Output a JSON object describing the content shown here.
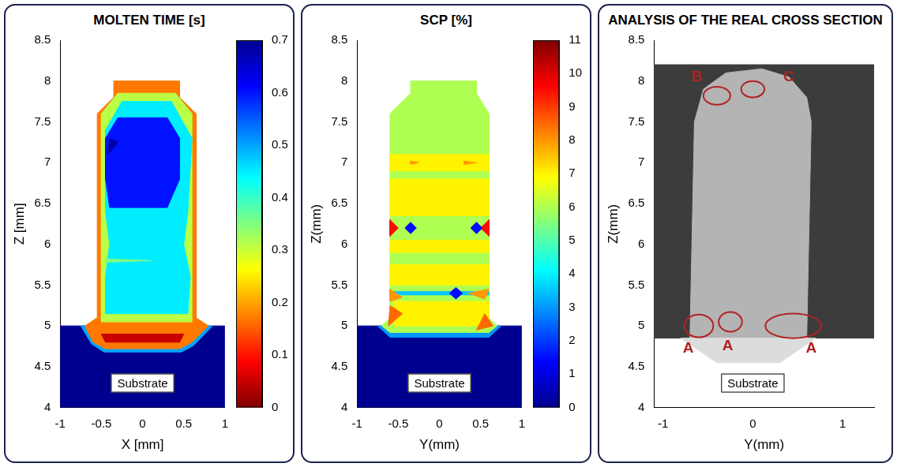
{
  "chart_data": [
    {
      "type": "contour",
      "title": "MOLTEN TIME [s]",
      "x_label": "X [mm]",
      "y_label": "Z [mm]",
      "xlim": [
        -1,
        1
      ],
      "xticks": [
        -1,
        -0.5,
        0,
        0.5,
        1
      ],
      "ylim": [
        4,
        8.5
      ],
      "yticks": [
        4,
        4.5,
        5,
        5.5,
        6,
        6.5,
        7,
        7.5,
        8,
        8.5
      ],
      "grid": false,
      "colorbar": {
        "range": [
          0,
          0.7
        ],
        "ticks": [
          0,
          0.1,
          0.2,
          0.3,
          0.4,
          0.5,
          0.6,
          0.7
        ],
        "colors": [
          "#800000",
          "#ff0000",
          "#ff8000",
          "#ffff00",
          "#80ff80",
          "#00ffff",
          "#0080ff",
          "#0000ff",
          "#00008f"
        ]
      },
      "regions": [
        {
          "value": 0.7,
          "points": [
            [
              -1,
              4
            ],
            [
              1,
              4
            ],
            [
              1,
              5
            ],
            [
              -1,
              5
            ]
          ]
        },
        {
          "value": 0.5,
          "points": [
            [
              -0.75,
              5.0
            ],
            [
              -0.62,
              4.78
            ],
            [
              -0.47,
              4.68
            ],
            [
              0.47,
              4.68
            ],
            [
              0.62,
              4.76
            ],
            [
              0.85,
              5.0
            ]
          ]
        },
        {
          "value": 0.17,
          "points": [
            [
              -0.7,
              5.0
            ],
            [
              -0.55,
              5.1
            ],
            [
              -0.55,
              7.6
            ],
            [
              -0.35,
              7.8
            ],
            [
              -0.35,
              8.0
            ],
            [
              0.45,
              8.0
            ],
            [
              0.45,
              7.8
            ],
            [
              0.65,
              7.6
            ],
            [
              0.65,
              5.1
            ],
            [
              0.8,
              5.0
            ],
            [
              0.6,
              4.8
            ],
            [
              0.45,
              4.72
            ],
            [
              -0.45,
              4.72
            ],
            [
              -0.6,
              4.8
            ]
          ]
        },
        {
          "value": 0.05,
          "points": [
            [
              -0.45,
              4.8
            ],
            [
              0.45,
              4.8
            ],
            [
              0.5,
              4.9
            ],
            [
              -0.5,
              4.9
            ]
          ]
        },
        {
          "value": 0.31,
          "points": [
            [
              -0.5,
              5.05
            ],
            [
              0.6,
              5.05
            ],
            [
              0.6,
              7.6
            ],
            [
              0.4,
              7.85
            ],
            [
              -0.3,
              7.85
            ],
            [
              -0.5,
              7.6
            ]
          ]
        },
        {
          "value": 0.45,
          "points": [
            [
              -0.45,
              5.15
            ],
            [
              0.55,
              5.15
            ],
            [
              0.58,
              5.6
            ],
            [
              0.5,
              6.0
            ],
            [
              0.55,
              6.4
            ],
            [
              0.6,
              7.3
            ],
            [
              0.35,
              7.75
            ],
            [
              -0.25,
              7.75
            ],
            [
              -0.45,
              7.4
            ],
            [
              -0.45,
              6.4
            ],
            [
              -0.4,
              6.0
            ],
            [
              -0.45,
              5.6
            ]
          ]
        },
        {
          "value": 0.35,
          "points": [
            [
              -0.45,
              5.78
            ],
            [
              0.1,
              5.8
            ],
            [
              -0.45,
              5.82
            ]
          ]
        },
        {
          "value": 0.6,
          "points": [
            [
              -0.4,
              6.45
            ],
            [
              0.3,
              6.45
            ],
            [
              0.45,
              6.8
            ],
            [
              0.45,
              7.3
            ],
            [
              0.3,
              7.55
            ],
            [
              -0.3,
              7.55
            ],
            [
              -0.45,
              7.3
            ],
            [
              -0.45,
              6.8
            ]
          ]
        },
        {
          "value": 0.68,
          "points": [
            [
              -0.42,
              7.1
            ],
            [
              -0.3,
              7.25
            ],
            [
              -0.4,
              7.3
            ]
          ]
        }
      ],
      "annotations": [
        {
          "text": "Substrate",
          "x": 0,
          "y": 4.3
        }
      ]
    },
    {
      "type": "contour",
      "title": "SCP [%]",
      "x_label": "Y(mm)",
      "y_label": "Z(mm)",
      "xlim": [
        -1,
        1
      ],
      "xticks": [
        -1,
        -0.5,
        0,
        0.5,
        1
      ],
      "ylim": [
        4,
        8.5
      ],
      "yticks": [
        4,
        4.5,
        5,
        5.5,
        6,
        6.5,
        7,
        7.5,
        8,
        8.5
      ],
      "grid": false,
      "colorbar": {
        "range": [
          0,
          11
        ],
        "ticks": [
          0,
          1,
          2,
          3,
          4,
          5,
          6,
          7,
          8,
          9,
          10,
          11
        ],
        "colors": [
          "#00008f",
          "#0000ff",
          "#0080ff",
          "#00ffff",
          "#80ff80",
          "#ffff00",
          "#ff8000",
          "#ff0000",
          "#800000"
        ]
      },
      "regions": [
        {
          "value": 0,
          "points": [
            [
              -1,
              4
            ],
            [
              1,
              4
            ],
            [
              1,
              5
            ],
            [
              -1,
              5
            ]
          ]
        },
        {
          "value": 3,
          "points": [
            [
              -0.75,
              5.0
            ],
            [
              -0.6,
              4.86
            ],
            [
              0.6,
              4.86
            ],
            [
              0.75,
              5.0
            ]
          ]
        },
        {
          "value": 6,
          "points": [
            [
              -0.7,
              5.0
            ],
            [
              -0.6,
              5.1
            ],
            [
              -0.6,
              7.6
            ],
            [
              -0.35,
              7.85
            ],
            [
              -0.35,
              8.0
            ],
            [
              0.45,
              8.0
            ],
            [
              0.45,
              7.85
            ],
            [
              0.6,
              7.6
            ],
            [
              0.6,
              5.1
            ],
            [
              0.7,
              5.0
            ],
            [
              0.6,
              4.92
            ],
            [
              -0.6,
              4.92
            ]
          ]
        },
        {
          "value": 7,
          "points": [
            [
              -0.55,
              5.0
            ],
            [
              0.6,
              5.0
            ],
            [
              0.6,
              5.3
            ],
            [
              -0.55,
              5.3
            ]
          ]
        },
        {
          "value": 7,
          "points": [
            [
              -0.6,
              5.5
            ],
            [
              0.6,
              5.5
            ],
            [
              0.6,
              5.75
            ],
            [
              -0.6,
              5.75
            ]
          ]
        },
        {
          "value": 7,
          "points": [
            [
              -0.6,
              5.9
            ],
            [
              0.6,
              5.9
            ],
            [
              0.6,
              6.05
            ],
            [
              -0.6,
              6.05
            ]
          ]
        },
        {
          "value": 7,
          "points": [
            [
              -0.6,
              6.35
            ],
            [
              0.6,
              6.35
            ],
            [
              0.6,
              6.8
            ],
            [
              -0.6,
              6.8
            ]
          ]
        },
        {
          "value": 7,
          "points": [
            [
              -0.6,
              6.9
            ],
            [
              0.6,
              6.9
            ],
            [
              0.6,
              7.1
            ],
            [
              -0.6,
              7.1
            ]
          ]
        },
        {
          "value": 8,
          "points": [
            [
              -0.35,
              6.98
            ],
            [
              -0.25,
              7.0
            ],
            [
              -0.35,
              7.02
            ]
          ]
        },
        {
          "value": 8,
          "points": [
            [
              0.3,
              6.98
            ],
            [
              0.45,
              7.0
            ],
            [
              0.3,
              7.02
            ]
          ]
        },
        {
          "value": 9.5,
          "points": [
            [
              -0.6,
              6.1
            ],
            [
              -0.5,
              6.2
            ],
            [
              -0.6,
              6.3
            ]
          ]
        },
        {
          "value": 9.5,
          "points": [
            [
              0.6,
              6.1
            ],
            [
              0.5,
              6.2
            ],
            [
              0.6,
              6.3
            ]
          ]
        },
        {
          "value": 3.5,
          "points": [
            [
              -0.6,
              5.38
            ],
            [
              0.6,
              5.38
            ],
            [
              0.6,
              5.42
            ],
            [
              -0.6,
              5.42
            ]
          ]
        },
        {
          "value": 1.5,
          "points": [
            [
              -0.42,
              6.2
            ],
            [
              -0.35,
              6.27
            ],
            [
              -0.28,
              6.2
            ],
            [
              -0.35,
              6.13
            ]
          ]
        },
        {
          "value": 1.5,
          "points": [
            [
              0.38,
              6.2
            ],
            [
              0.45,
              6.27
            ],
            [
              0.52,
              6.2
            ],
            [
              0.45,
              6.13
            ]
          ]
        },
        {
          "value": 1.5,
          "points": [
            [
              0.12,
              5.4
            ],
            [
              0.2,
              5.47
            ],
            [
              0.28,
              5.4
            ],
            [
              0.2,
              5.33
            ]
          ]
        },
        {
          "value": 8,
          "points": [
            [
              0.35,
              5.4
            ],
            [
              0.55,
              5.33
            ],
            [
              0.6,
              5.45
            ]
          ]
        },
        {
          "value": 8.5,
          "points": [
            [
              -0.62,
              5.0
            ],
            [
              -0.45,
              5.15
            ],
            [
              -0.6,
              5.25
            ]
          ]
        },
        {
          "value": 8.5,
          "points": [
            [
              0.45,
              4.95
            ],
            [
              0.65,
              5.0
            ],
            [
              0.55,
              5.15
            ]
          ]
        },
        {
          "value": 8,
          "points": [
            [
              -0.6,
              5.3
            ],
            [
              -0.45,
              5.35
            ],
            [
              -0.6,
              5.45
            ]
          ]
        }
      ],
      "annotations": [
        {
          "text": "Substrate",
          "x": 0,
          "y": 4.3
        }
      ]
    },
    {
      "type": "image",
      "title": "ANALYSIS OF THE REAL CROSS SECTION",
      "x_label": "Y(mm)",
      "y_label": "Z(mm)",
      "xlim": [
        -1.1,
        1.35
      ],
      "xticks": [
        -1,
        0,
        1
      ],
      "ylim": [
        4,
        8.5
      ],
      "yticks": [
        4,
        4.5,
        5,
        5.5,
        6,
        6.5,
        7,
        7.5,
        8,
        8.5
      ],
      "grid": false,
      "regions": [
        {
          "color": "#3c3c3c",
          "points": [
            [
              -1.1,
              4.85
            ],
            [
              1.35,
              4.85
            ],
            [
              1.35,
              8.2
            ],
            [
              -1.1,
              8.2
            ]
          ]
        },
        {
          "color": "#b4b4b4",
          "points": [
            [
              -0.7,
              4.85
            ],
            [
              -0.65,
              7.5
            ],
            [
              -0.55,
              7.9
            ],
            [
              -0.3,
              8.1
            ],
            [
              0.1,
              8.15
            ],
            [
              0.4,
              8.05
            ],
            [
              0.6,
              7.8
            ],
            [
              0.65,
              7.5
            ],
            [
              0.6,
              4.85
            ]
          ]
        },
        {
          "color": "#dcdcdc",
          "points": [
            [
              -0.8,
              4.85
            ],
            [
              -0.4,
              4.55
            ],
            [
              0.3,
              4.55
            ],
            [
              0.7,
              4.85
            ]
          ]
        }
      ],
      "circles": [
        {
          "x": -0.4,
          "y": 7.82,
          "width": 0.3,
          "height": 0.22,
          "color": "#b22222"
        },
        {
          "x": 0,
          "y": 7.9,
          "width": 0.26,
          "height": 0.2,
          "color": "#b22222"
        },
        {
          "x": -0.6,
          "y": 5.0,
          "width": 0.32,
          "height": 0.28,
          "color": "#b22222"
        },
        {
          "x": -0.25,
          "y": 5.05,
          "width": 0.26,
          "height": 0.24,
          "color": "#b22222"
        },
        {
          "x": 0.45,
          "y": 5.0,
          "width": 0.62,
          "height": 0.3,
          "color": "#b22222"
        }
      ],
      "annotations": [
        {
          "text": "B",
          "x": -0.62,
          "y": 8.05,
          "color": "#b22222"
        },
        {
          "text": "C",
          "x": 0.4,
          "y": 8.05,
          "color": "#b22222"
        },
        {
          "text": "A",
          "x": -0.72,
          "y": 4.72,
          "color": "#b22222"
        },
        {
          "text": "A",
          "x": -0.28,
          "y": 4.75,
          "color": "#b22222"
        },
        {
          "text": "A",
          "x": 0.65,
          "y": 4.72,
          "color": "#b22222"
        },
        {
          "text": "Substrate",
          "x": 0,
          "y": 4.3
        }
      ]
    }
  ]
}
